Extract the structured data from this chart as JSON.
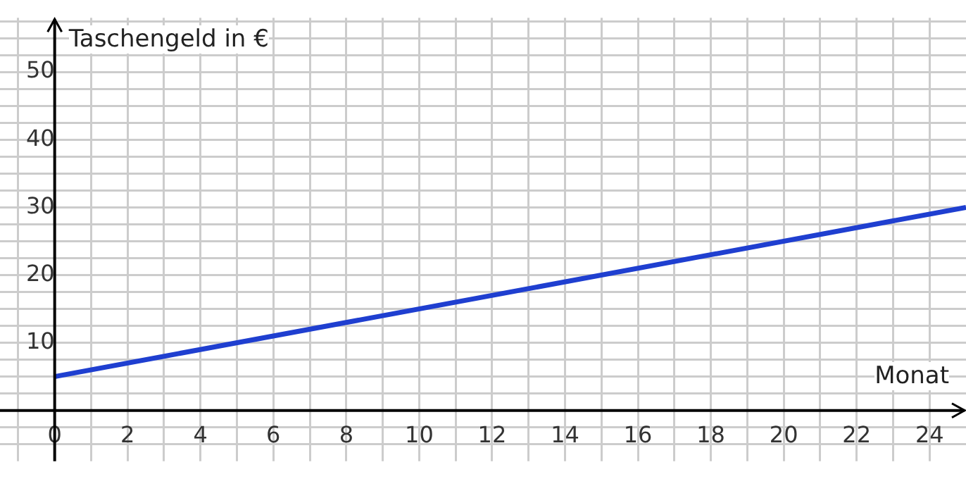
{
  "chart_data": {
    "type": "line",
    "xlabel": "Monat",
    "ylabel": "Taschengeld in €",
    "x": [
      0,
      25
    ],
    "series": [
      {
        "color": "#1f3fd0",
        "values": [
          5,
          30
        ]
      }
    ],
    "xlim": [
      -1.5,
      25
    ],
    "ylim": [
      -7.5,
      58
    ],
    "xticks": [
      {
        "value": -1,
        "label": null
      },
      {
        "value": 0,
        "label": "0"
      },
      {
        "value": 1,
        "label": null
      },
      2,
      {
        "value": 3,
        "label": null
      },
      4,
      {
        "value": 5,
        "label": null
      },
      6,
      {
        "value": 7,
        "label": null
      },
      8,
      {
        "value": 9,
        "label": null
      },
      10,
      {
        "value": 11,
        "label": null
      },
      12,
      {
        "value": 13,
        "label": null
      },
      14,
      {
        "value": 15,
        "label": null
      },
      16,
      {
        "value": 17,
        "label": null
      },
      18,
      {
        "value": 19,
        "label": null
      },
      20,
      {
        "value": 21,
        "label": null
      },
      22,
      {
        "value": 23,
        "label": null
      },
      24
    ],
    "yticks": [
      {
        "value": -5,
        "label": null
      },
      {
        "value": -2.5,
        "label": null
      },
      {
        "value": 0,
        "label": null
      },
      {
        "value": 2.5,
        "label": null
      },
      {
        "value": 5,
        "label": null
      },
      {
        "value": 7.5,
        "label": null
      },
      10,
      {
        "value": 12.5,
        "label": null
      },
      {
        "value": 15,
        "label": null
      },
      {
        "value": 17.5,
        "label": null
      },
      20,
      {
        "value": 22.5,
        "label": null
      },
      {
        "value": 25,
        "label": null
      },
      {
        "value": 27.5,
        "label": null
      },
      30,
      {
        "value": 32.5,
        "label": null
      },
      {
        "value": 35,
        "label": null
      },
      {
        "value": 37.5,
        "label": null
      },
      40,
      {
        "value": 42.5,
        "label": null
      },
      {
        "value": 45,
        "label": null
      },
      {
        "value": 47.5,
        "label": null
      },
      50,
      {
        "value": 52.5,
        "label": null
      },
      {
        "value": 55,
        "label": null
      },
      {
        "value": 57.5,
        "label": null
      }
    ],
    "grid": true,
    "legend": false,
    "marker": "none",
    "line_style": "solid"
  }
}
